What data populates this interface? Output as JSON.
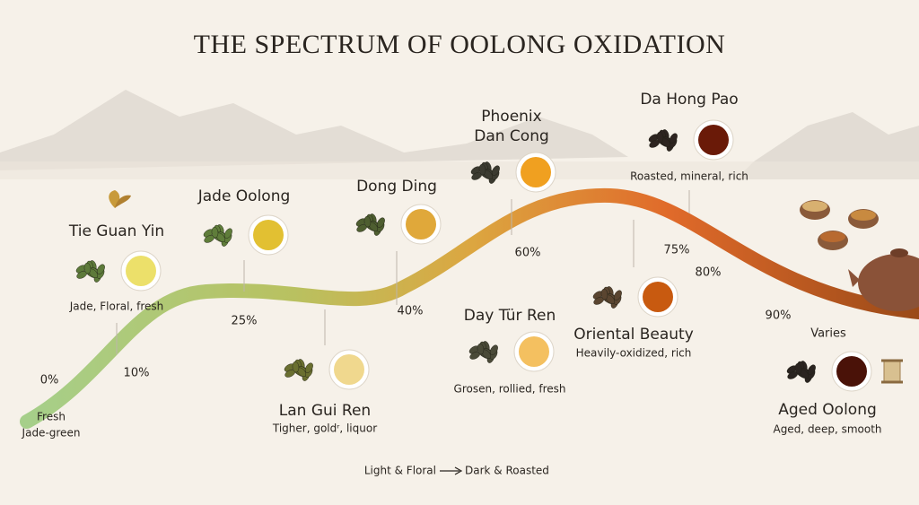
{
  "title": "THE SPECTRUM OF OOLONG OXIDATION",
  "start_label": [
    "Fresh",
    "Jade-green"
  ],
  "curve_labels": [
    "0%",
    "10%",
    "25%",
    "40%",
    "60%",
    "75%",
    "80%",
    "90%",
    "Varies"
  ],
  "teas": [
    {
      "name": "Tie Guan Yin",
      "desc": "Jade, Floral, fresh"
    },
    {
      "name": "Jade Oolong"
    },
    {
      "name": "Lan Gui Ren",
      "desc": "Tigher, goldʳ, liquor"
    },
    {
      "name": "Dong Ding"
    },
    {
      "name": [
        "Phoenix",
        "Dan Cong"
      ]
    },
    {
      "name": "Day Tür Ren",
      "desc": "Grosen, rollied, fresh"
    },
    {
      "name": "Da Hong Pao",
      "desc": "Roasted, mineral, rich"
    },
    {
      "name": "Oriental Beauty",
      "desc": "Heavily-oxidized, rich"
    },
    {
      "name": "Aged Oolong",
      "desc": "Aged, deep, smooth"
    }
  ],
  "footer": {
    "from": "Light & Floral",
    "to": "Dark & Roasted"
  }
}
